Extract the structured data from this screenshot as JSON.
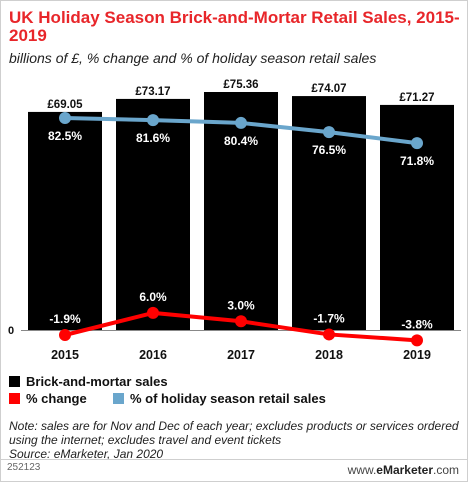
{
  "header": {
    "title": "UK Holiday Season Brick-and-Mortar Retail Sales, 2015-2019",
    "subtitle": "billions of £, % change and % of holiday season retail sales"
  },
  "legend": {
    "items": [
      {
        "label": "Brick-and-mortar sales",
        "color": "#000000"
      },
      {
        "label": "% change",
        "color": "#ff0000"
      },
      {
        "label": "% of holiday season retail sales",
        "color": "#6aa6cc"
      }
    ]
  },
  "chart_data": {
    "type": "bar",
    "categories": [
      "2015",
      "2016",
      "2017",
      "2018",
      "2019"
    ],
    "zero_label": "0",
    "series": [
      {
        "name": "Brick-and-mortar sales",
        "kind": "bar",
        "color": "#000000",
        "values": [
          69.05,
          73.17,
          75.36,
          74.07,
          71.27
        ],
        "labels": [
          "£69.05",
          "£73.17",
          "£75.36",
          "£74.07",
          "£71.27"
        ]
      },
      {
        "name": "% of holiday season retail sales",
        "kind": "line",
        "color": "#6aa6cc",
        "values": [
          82.5,
          81.6,
          80.4,
          76.5,
          71.8
        ],
        "labels": [
          "82.5%",
          "81.6%",
          "80.4%",
          "76.5%",
          "71.8%"
        ]
      },
      {
        "name": "% change",
        "kind": "line",
        "color": "#ff0000",
        "values": [
          -1.9,
          6.0,
          3.0,
          -1.7,
          -3.8
        ],
        "labels": [
          "-1.9%",
          "6.0%",
          "3.0%",
          "-1.7%",
          "-3.8%"
        ]
      }
    ]
  },
  "footer": {
    "note": "Note: sales are for Nov and Dec of each year; excludes products or services ordered using the internet; excludes travel and event tickets",
    "source": "Source: eMarketer, Jan 2020",
    "chart_id": "252123",
    "brand_prefix": "www.",
    "brand_name": "eMarketer",
    "brand_suffix": ".com"
  }
}
